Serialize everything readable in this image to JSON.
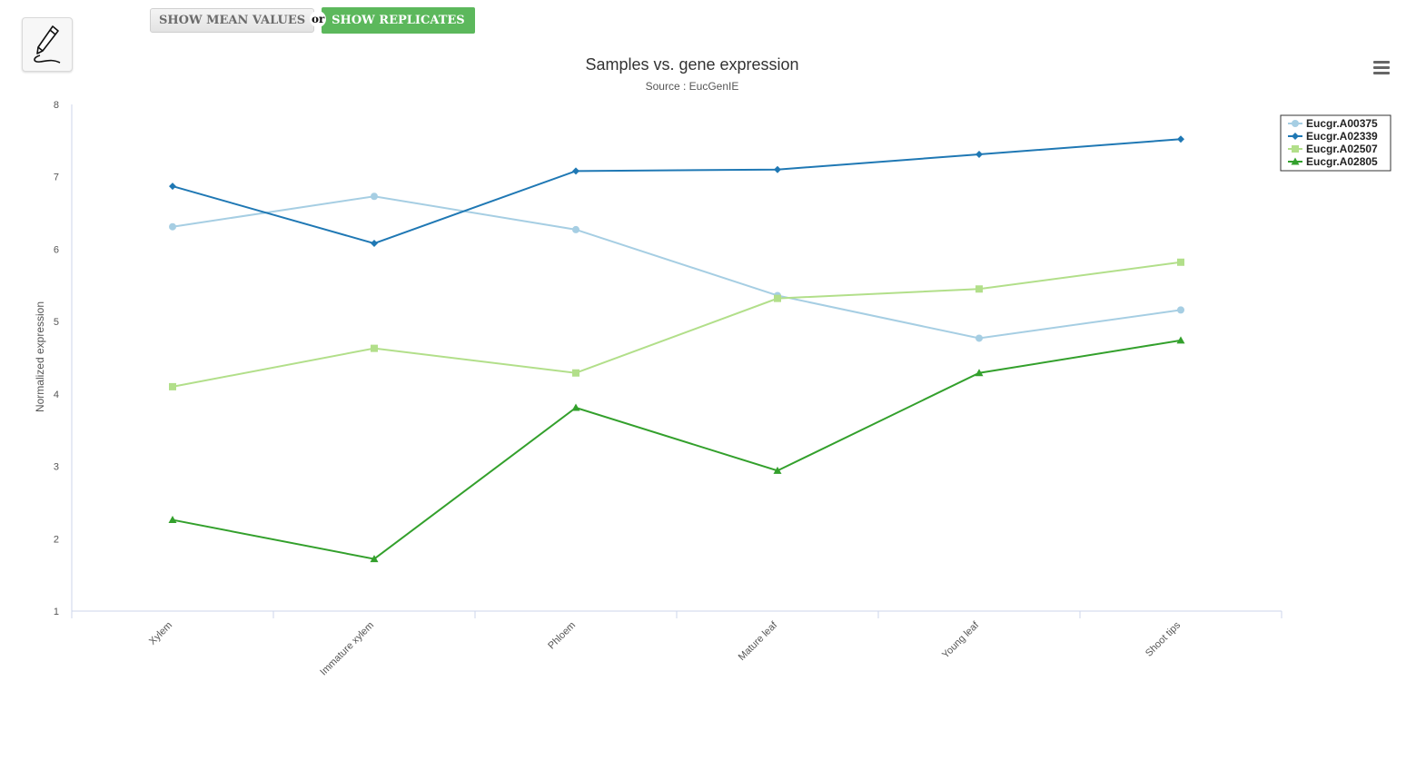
{
  "toolbar": {
    "edit_icon": "pencil-icon",
    "mean_label": "SHOW MEAN VALUES",
    "or_label": "or",
    "replicates_label": "SHOW REPLICATES",
    "menu_icon": "hamburger-menu-icon"
  },
  "colors": {
    "accent_green_button": "#5cb85c"
  },
  "chart_data": {
    "type": "line",
    "title": "Samples vs. gene expression",
    "subtitle": "Source : EucGenIE",
    "xlabel": "",
    "ylabel": "Normalized expression",
    "ylim": [
      1,
      8
    ],
    "yticks": [
      1,
      2,
      3,
      4,
      5,
      6,
      7,
      8
    ],
    "grid": false,
    "legend_position": "top-right",
    "categories": [
      "Xylem",
      "Immature xylem",
      "Phloem",
      "Mature leaf",
      "Young leaf",
      "Shoot tips"
    ],
    "series": [
      {
        "name": "Eucgr.A00375",
        "color": "#a6cee3",
        "marker": "circle",
        "values": [
          6.31,
          6.73,
          6.27,
          5.36,
          4.77,
          5.16
        ]
      },
      {
        "name": "Eucgr.A02339",
        "color": "#1f78b4",
        "marker": "diamond",
        "values": [
          6.87,
          6.08,
          7.08,
          7.1,
          7.31,
          7.52
        ]
      },
      {
        "name": "Eucgr.A02507",
        "color": "#b2df8a",
        "marker": "square",
        "values": [
          4.1,
          4.63,
          4.29,
          5.32,
          5.45,
          5.82
        ]
      },
      {
        "name": "Eucgr.A02805",
        "color": "#33a02c",
        "marker": "triangle",
        "values": [
          2.26,
          1.72,
          3.81,
          2.94,
          4.29,
          4.74
        ]
      }
    ]
  }
}
